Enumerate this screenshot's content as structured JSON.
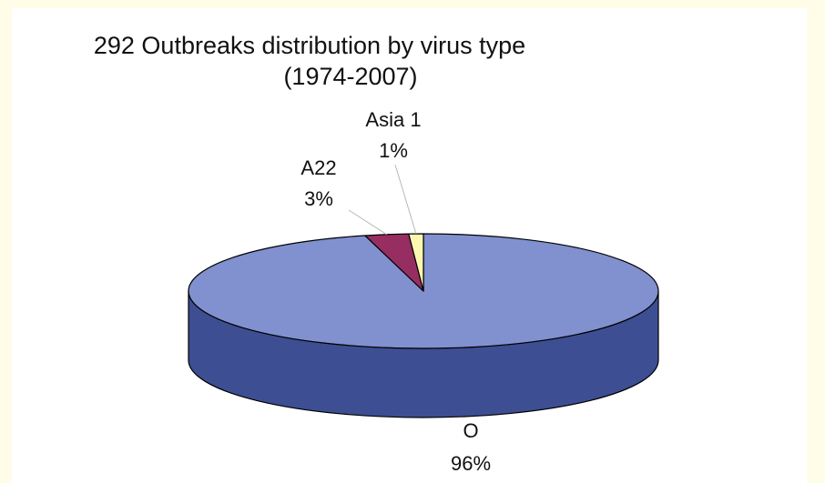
{
  "background": "#fffde7",
  "chart_data": {
    "type": "pie",
    "title": "292 Outbreaks distribution by virus type",
    "subtitle": "(1974-2007)",
    "three_d": true,
    "slices": [
      {
        "label": "O",
        "percent_label": "96%",
        "value": 96,
        "color": "#8190cf",
        "side_color": "#3e4e93"
      },
      {
        "label": "A22",
        "percent_label": "3%",
        "value": 3,
        "color": "#962e61",
        "side_color": "#6b1f45"
      },
      {
        "label": "Asia 1",
        "percent_label": "1%",
        "value": 1,
        "color": "#fcf7b0",
        "side_color": "#c8c180"
      }
    ],
    "legend": "none"
  }
}
